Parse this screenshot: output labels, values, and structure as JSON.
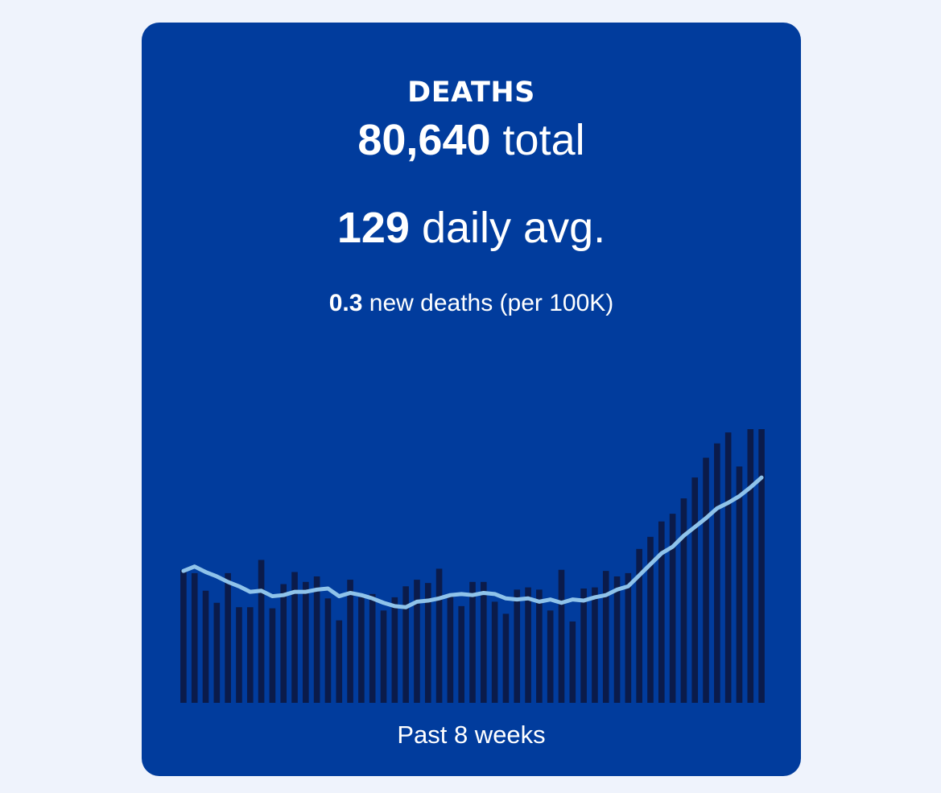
{
  "card": {
    "title": "DEATHS",
    "total_value": "80,640",
    "total_unit": "total",
    "daily_value": "129",
    "daily_unit": "daily avg.",
    "per100k_value": "0.3",
    "per100k_label": "new deaths (per 100K)",
    "footer": "Past 8 weeks"
  },
  "colors": {
    "background": "#EFF3FC",
    "card": "#013C9D",
    "bars": "#0B1B4A",
    "line": "#8FC3EA",
    "text": "#FFFFFF"
  },
  "chart_data": {
    "type": "bar",
    "bars": [
      121,
      118,
      102,
      91,
      118,
      87,
      87,
      130,
      86,
      108,
      119,
      110,
      115,
      95,
      75,
      112,
      96,
      99,
      84,
      96,
      106,
      112,
      109,
      122,
      98,
      88,
      110,
      110,
      92,
      81,
      103,
      105,
      103,
      84,
      121,
      74,
      104,
      105,
      120,
      115,
      118,
      140,
      151,
      165,
      172,
      186,
      205,
      223,
      236,
      246,
      215,
      249,
      249
    ],
    "line": [
      120,
      124,
      119,
      115,
      110,
      106,
      101,
      102,
      97,
      98,
      101,
      101,
      103,
      104,
      97,
      100,
      98,
      95,
      91,
      88,
      87,
      92,
      93,
      95,
      98,
      99,
      98,
      100,
      99,
      95,
      94,
      95,
      92,
      94,
      91,
      94,
      93,
      96,
      98,
      103,
      106,
      116,
      126,
      136,
      142,
      152,
      160,
      168,
      177,
      182,
      188,
      196,
      205
    ],
    "ylim": [
      0,
      260
    ]
  }
}
